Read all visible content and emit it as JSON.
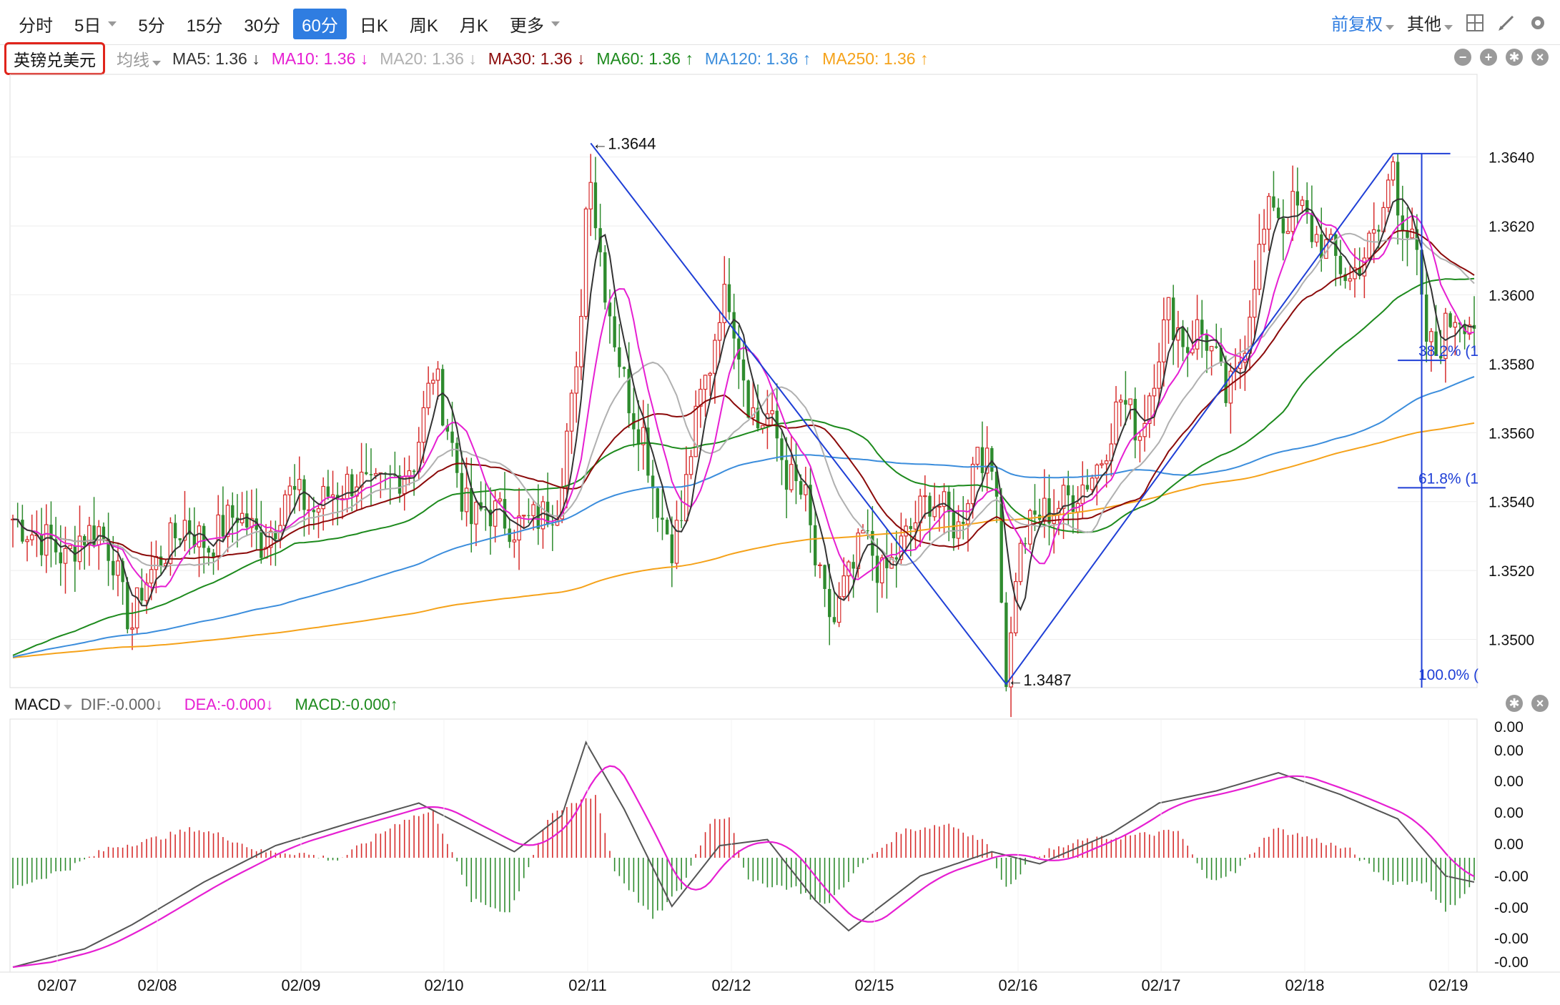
{
  "toolbar": {
    "tabs": [
      {
        "label": "分时",
        "active": false,
        "caret": false
      },
      {
        "label": "5日",
        "active": false,
        "caret": true
      },
      {
        "label": "5分",
        "active": false,
        "caret": false
      },
      {
        "label": "15分",
        "active": false,
        "caret": false
      },
      {
        "label": "30分",
        "active": false,
        "caret": false
      },
      {
        "label": "60分",
        "active": true,
        "caret": false
      },
      {
        "label": "日K",
        "active": false,
        "caret": false
      },
      {
        "label": "周K",
        "active": false,
        "caret": false
      },
      {
        "label": "月K",
        "active": false,
        "caret": false
      },
      {
        "label": "更多",
        "active": false,
        "caret": true
      }
    ],
    "adjust_label": "前复权",
    "other_label": "其他"
  },
  "ma_row": {
    "symbol": "英镑兑美元",
    "type_label": "均线",
    "items": [
      {
        "text": "MA5: 1.36 ↓",
        "color": "#333333"
      },
      {
        "text": "MA10: 1.36 ↓",
        "color": "#e61fd2"
      },
      {
        "text": "MA20: 1.36 ↓",
        "color": "#b0b0b0"
      },
      {
        "text": "MA30: 1.36 ↓",
        "color": "#8b0a0a"
      },
      {
        "text": "MA60: 1.36 ↑",
        "color": "#1d8a1d"
      },
      {
        "text": "MA120: 1.36 ↑",
        "color": "#3b8ddc"
      },
      {
        "text": "MA250: 1.36 ↑",
        "color": "#f5a21a"
      }
    ]
  },
  "macd_row": {
    "title": "MACD",
    "dif": "DIF:-0.000↓",
    "dea": "DEA:-0.000↓",
    "macd": "MACD:-0.000↑",
    "colors": {
      "dif": "#666666",
      "dea": "#e61fd2",
      "macd": "#1d8a1d"
    }
  },
  "chart_data": {
    "type": "candlestick",
    "price_axis": {
      "ticks": [
        "1.3640",
        "1.3620",
        "1.3600",
        "1.3580",
        "1.3560",
        "1.3540",
        "1.3520",
        "1.3500"
      ],
      "ylim": [
        1.3486,
        1.3664
      ]
    },
    "date_labels": [
      "02/07",
      "02/08",
      "02/09",
      "02/10",
      "02/11",
      "02/12",
      "02/15",
      "02/16",
      "02/17",
      "02/18",
      "02/19"
    ],
    "annotations": {
      "high": "←1.3644",
      "low": "←1.3487",
      "high_value": 1.3644,
      "low_value": 1.3487
    },
    "fibonacci": {
      "labels": [
        "38.2% (1",
        "61.8% (1",
        "100.0% ("
      ]
    },
    "macd_axis": {
      "ticks": [
        "0.00",
        "0.00",
        "0.00",
        "0.00",
        "0.00",
        "-0.00",
        "-0.00",
        "-0.00",
        "-0.00"
      ]
    },
    "colors": {
      "up": "#d62d2d",
      "down": "#2e8b2e",
      "zigzag": "#1f3fd6",
      "ma5": "#333333",
      "ma10": "#e61fd2",
      "ma20": "#b0b0b0",
      "ma30": "#8b0a0a",
      "ma60": "#1d8a1d",
      "ma120": "#3b8ddc",
      "ma250": "#f5a21a"
    },
    "close_path": [
      [
        0,
        1.3535
      ],
      [
        4,
        1.3531
      ],
      [
        8,
        1.3528
      ],
      [
        11,
        1.3523
      ],
      [
        14,
        1.353
      ],
      [
        18,
        1.3532
      ],
      [
        21,
        1.3524
      ],
      [
        23,
        1.3511
      ],
      [
        25,
        1.3504
      ],
      [
        27,
        1.3515
      ],
      [
        30,
        1.3522
      ],
      [
        33,
        1.3528
      ],
      [
        36,
        1.3534
      ],
      [
        38,
        1.3531
      ],
      [
        41,
        1.3527
      ],
      [
        44,
        1.3533
      ],
      [
        47,
        1.3537
      ],
      [
        50,
        1.3532
      ],
      [
        52,
        1.3528
      ],
      [
        55,
        1.3534
      ],
      [
        57,
        1.3543
      ],
      [
        60,
        1.3541
      ],
      [
        63,
        1.3537
      ],
      [
        66,
        1.3542
      ],
      [
        69,
        1.3544
      ],
      [
        72,
        1.3547
      ],
      [
        75,
        1.3542
      ],
      [
        78,
        1.3545
      ],
      [
        81,
        1.3548
      ],
      [
        84,
        1.3552
      ],
      [
        86,
        1.3565
      ],
      [
        88,
        1.3578
      ],
      [
        90,
        1.3568
      ],
      [
        92,
        1.3556
      ],
      [
        94,
        1.3542
      ],
      [
        96,
        1.3534
      ],
      [
        99,
        1.3538
      ],
      [
        102,
        1.3536
      ],
      [
        105,
        1.3533
      ],
      [
        108,
        1.3534
      ],
      [
        111,
        1.3536
      ],
      [
        114,
        1.354
      ],
      [
        116,
        1.356
      ],
      [
        118,
        1.3575
      ],
      [
        119,
        1.3598
      ],
      [
        120,
        1.3625
      ],
      [
        121,
        1.3638
      ],
      [
        122,
        1.3622
      ],
      [
        124,
        1.3603
      ],
      [
        126,
        1.3588
      ],
      [
        128,
        1.3575
      ],
      [
        130,
        1.3565
      ],
      [
        132,
        1.356
      ],
      [
        134,
        1.3545
      ],
      [
        136,
        1.3535
      ],
      [
        138,
        1.3528
      ],
      [
        140,
        1.3535
      ],
      [
        142,
        1.3555
      ],
      [
        144,
        1.357
      ],
      [
        146,
        1.358
      ],
      [
        148,
        1.3597
      ],
      [
        150,
        1.36
      ],
      [
        152,
        1.3585
      ],
      [
        154,
        1.357
      ],
      [
        156,
        1.3562
      ],
      [
        158,
        1.3565
      ],
      [
        160,
        1.3558
      ],
      [
        162,
        1.3548
      ],
      [
        164,
        1.3544
      ],
      [
        166,
        1.354
      ],
      [
        168,
        1.3522
      ],
      [
        170,
        1.351
      ],
      [
        172,
        1.3505
      ],
      [
        174,
        1.3515
      ],
      [
        176,
        1.352
      ],
      [
        178,
        1.353
      ],
      [
        180,
        1.3525
      ],
      [
        182,
        1.3518
      ],
      [
        184,
        1.3522
      ],
      [
        186,
        1.3527
      ],
      [
        188,
        1.3532
      ],
      [
        190,
        1.3537
      ],
      [
        192,
        1.3541
      ],
      [
        194,
        1.3539
      ],
      [
        196,
        1.3535
      ],
      [
        198,
        1.3532
      ],
      [
        200,
        1.3543
      ],
      [
        202,
        1.3558
      ],
      [
        204,
        1.355
      ],
      [
        206,
        1.3547
      ],
      [
        207,
        1.3512
      ],
      [
        208,
        1.349
      ],
      [
        209,
        1.35
      ],
      [
        210,
        1.352
      ],
      [
        212,
        1.353
      ],
      [
        214,
        1.3535
      ],
      [
        216,
        1.3537
      ],
      [
        218,
        1.3538
      ],
      [
        220,
        1.354
      ],
      [
        222,
        1.3542
      ],
      [
        224,
        1.3545
      ],
      [
        226,
        1.3548
      ],
      [
        228,
        1.3553
      ],
      [
        230,
        1.3562
      ],
      [
        232,
        1.357
      ],
      [
        234,
        1.3565
      ],
      [
        236,
        1.356
      ],
      [
        238,
        1.3572
      ],
      [
        240,
        1.3585
      ],
      [
        242,
        1.3595
      ],
      [
        244,
        1.359
      ],
      [
        246,
        1.3585
      ],
      [
        248,
        1.359
      ],
      [
        250,
        1.3587
      ],
      [
        252,
        1.358
      ],
      [
        254,
        1.357
      ],
      [
        256,
        1.3575
      ],
      [
        258,
        1.3588
      ],
      [
        260,
        1.3606
      ],
      [
        262,
        1.3618
      ],
      [
        264,
        1.3628
      ],
      [
        266,
        1.362
      ],
      [
        268,
        1.3625
      ],
      [
        270,
        1.3624
      ],
      [
        272,
        1.3618
      ],
      [
        274,
        1.3615
      ],
      [
        276,
        1.3612
      ],
      [
        278,
        1.3608
      ],
      [
        280,
        1.3604
      ],
      [
        282,
        1.361
      ],
      [
        284,
        1.3614
      ],
      [
        286,
        1.3618
      ],
      [
        288,
        1.3632
      ],
      [
        289,
        1.364
      ],
      [
        290,
        1.3628
      ],
      [
        292,
        1.3618
      ],
      [
        294,
        1.361
      ],
      [
        295,
        1.3595
      ],
      [
        296,
        1.3587
      ],
      [
        298,
        1.3583
      ],
      [
        300,
        1.359
      ],
      [
        302,
        1.3595
      ],
      [
        304,
        1.3594
      ],
      [
        306,
        1.3592
      ]
    ],
    "macd_path": [
      [
        0,
        -0.9
      ],
      [
        15,
        -0.75
      ],
      [
        25,
        -0.55
      ],
      [
        40,
        -0.2
      ],
      [
        55,
        0.1
      ],
      [
        70,
        0.28
      ],
      [
        85,
        0.45
      ],
      [
        95,
        0.25
      ],
      [
        105,
        0.05
      ],
      [
        115,
        0.35
      ],
      [
        120,
        0.95
      ],
      [
        128,
        0.4
      ],
      [
        138,
        -0.4
      ],
      [
        148,
        0.1
      ],
      [
        158,
        0.15
      ],
      [
        168,
        -0.35
      ],
      [
        175,
        -0.6
      ],
      [
        190,
        -0.15
      ],
      [
        205,
        0.05
      ],
      [
        215,
        -0.05
      ],
      [
        230,
        0.2
      ],
      [
        240,
        0.45
      ],
      [
        252,
        0.55
      ],
      [
        265,
        0.7
      ],
      [
        278,
        0.52
      ],
      [
        290,
        0.32
      ],
      [
        300,
        -0.15
      ],
      [
        306,
        -0.2
      ]
    ],
    "macd_hist": [
      [
        0,
        -0.25
      ],
      [
        12,
        -0.08
      ],
      [
        20,
        0.08
      ],
      [
        28,
        0.14
      ],
      [
        38,
        0.24
      ],
      [
        44,
        0.18
      ],
      [
        52,
        0.05
      ],
      [
        60,
        0.04
      ],
      [
        68,
        -0.02
      ],
      [
        82,
        0.32
      ],
      [
        88,
        0.38
      ],
      [
        92,
        0.05
      ],
      [
        96,
        -0.35
      ],
      [
        104,
        -0.45
      ],
      [
        112,
        0.32
      ],
      [
        118,
        0.46
      ],
      [
        122,
        0.52
      ],
      [
        126,
        -0.1
      ],
      [
        134,
        -0.5
      ],
      [
        140,
        -0.25
      ],
      [
        146,
        0.3
      ],
      [
        150,
        0.35
      ],
      [
        154,
        -0.2
      ],
      [
        164,
        -0.25
      ],
      [
        170,
        -0.4
      ],
      [
        178,
        -0.05
      ],
      [
        186,
        0.22
      ],
      [
        196,
        0.28
      ],
      [
        204,
        0.12
      ],
      [
        208,
        -0.25
      ],
      [
        214,
        0.02
      ],
      [
        224,
        0.14
      ],
      [
        234,
        0.18
      ],
      [
        244,
        0.22
      ],
      [
        250,
        -0.18
      ],
      [
        256,
        -0.12
      ],
      [
        264,
        0.24
      ],
      [
        272,
        0.16
      ],
      [
        280,
        0.06
      ],
      [
        288,
        -0.2
      ],
      [
        296,
        -0.2
      ],
      [
        300,
        -0.45
      ],
      [
        306,
        -0.2
      ]
    ]
  }
}
